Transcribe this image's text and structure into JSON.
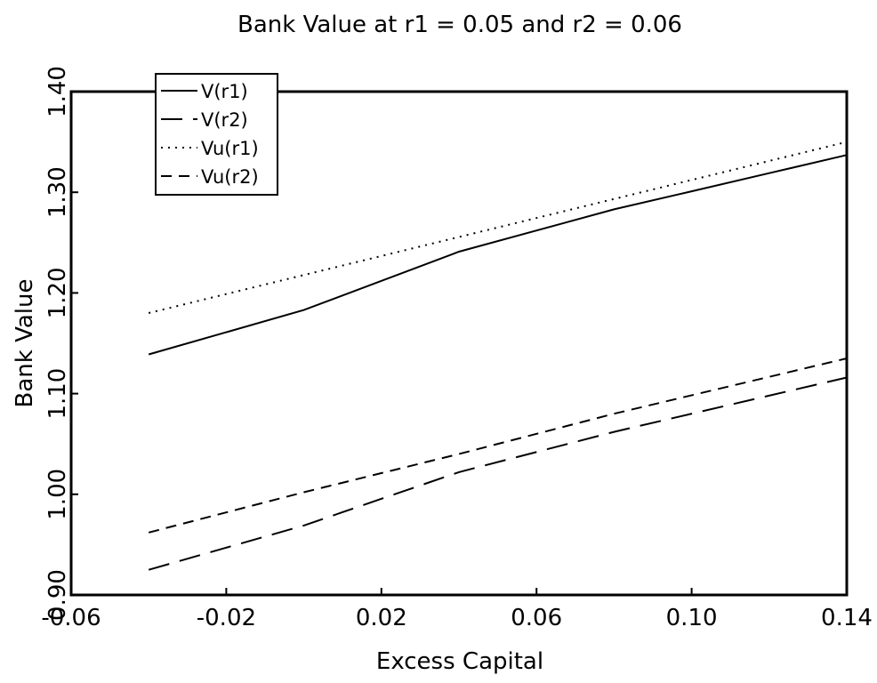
{
  "chart_data": {
    "type": "line",
    "title": "Bank Value at r1 = 0.05 and r2 = 0.06",
    "xlabel": "Excess Capital",
    "ylabel": "Bank Value",
    "xlim": [
      -0.06,
      0.14
    ],
    "ylim": [
      0.9,
      1.4
    ],
    "xticks": [
      -0.06,
      -0.02,
      0.02,
      0.06,
      0.1,
      0.14
    ],
    "xtick_labels": [
      "-0.06",
      "-0.02",
      "0.02",
      "0.06",
      "0.10",
      "0.14"
    ],
    "yticks": [
      0.9,
      1.0,
      1.1,
      1.2,
      1.3,
      1.4
    ],
    "ytick_labels": [
      "0.90",
      "1.00",
      "1.10",
      "1.20",
      "1.30",
      "1.40"
    ],
    "grid": false,
    "legend_position": "top-left",
    "series": [
      {
        "name": "V(r1)",
        "style": "solid",
        "color": "#000000",
        "points": [
          [
            -0.04,
            1.139
          ],
          [
            0.0,
            1.183
          ],
          [
            0.04,
            1.241
          ],
          [
            0.06,
            1.262
          ],
          [
            0.08,
            1.283
          ],
          [
            0.1,
            1.301
          ],
          [
            0.12,
            1.319
          ],
          [
            0.14,
            1.337
          ]
        ]
      },
      {
        "name": "V(r2)",
        "style": "longdash",
        "color": "#000000",
        "points": [
          [
            -0.04,
            0.925
          ],
          [
            0.0,
            0.969
          ],
          [
            0.04,
            1.022
          ],
          [
            0.08,
            1.062
          ],
          [
            0.14,
            1.116
          ]
        ]
      },
      {
        "name": "Vu(r1)",
        "style": "dotted",
        "color": "#000000",
        "points": [
          [
            -0.04,
            1.18
          ],
          [
            0.14,
            1.35
          ]
        ]
      },
      {
        "name": "Vu(r2)",
        "style": "dashed",
        "color": "#000000",
        "points": [
          [
            -0.04,
            0.962
          ],
          [
            0.0,
            1.002
          ],
          [
            0.04,
            1.04
          ],
          [
            0.08,
            1.08
          ],
          [
            0.14,
            1.135
          ]
        ]
      }
    ]
  }
}
